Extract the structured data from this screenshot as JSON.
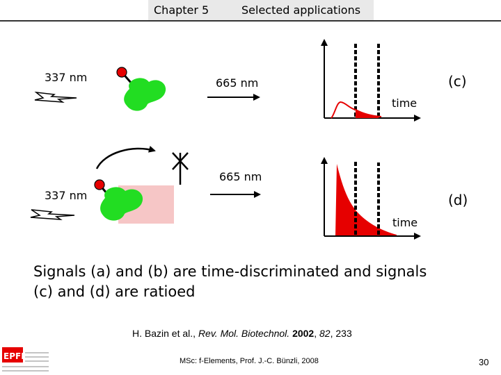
{
  "header": {
    "chapter": "Chapter 5",
    "section": "Selected applications"
  },
  "panel_c": {
    "excitation": "337 nm",
    "emission": "665 nm",
    "label": "(c)",
    "axis_label": "time"
  },
  "panel_d": {
    "excitation": "337 nm",
    "emission": "665 nm",
    "label": "(d)",
    "axis_label": "time"
  },
  "statement": {
    "line1": "Signals (a) and (b) are time-discriminated and signals",
    "line2": "(c) and (d) are ratioed"
  },
  "citation": {
    "authors": "H. Bazin et al., ",
    "journal": "Rev. Mol. Biotechnol.",
    "year": "2002",
    "volume": "82",
    "pages": "233"
  },
  "footer": {
    "course": "MSc: f-Elements,  Prof. J.-C. Bünzli, 2008",
    "page": "30",
    "logo": "EPFL"
  },
  "colors": {
    "accent_red": "#e60000",
    "protein_green": "#22dd22",
    "acceptor_pink": "#f6c6c6"
  }
}
